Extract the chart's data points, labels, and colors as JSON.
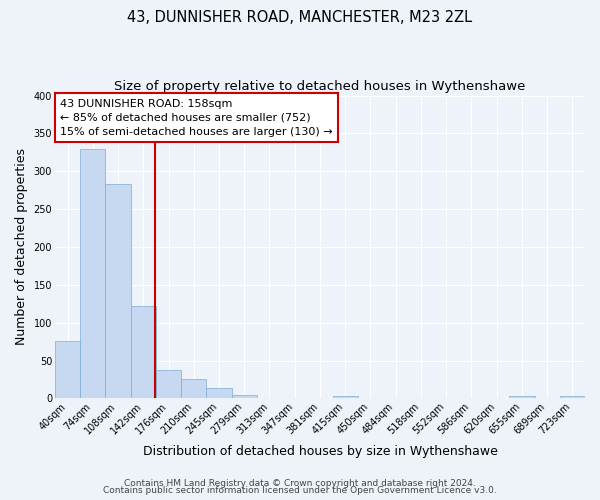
{
  "title_line1": "43, DUNNISHER ROAD, MANCHESTER, M23 2ZL",
  "title_line2": "Size of property relative to detached houses in Wythenshawe",
  "xlabel": "Distribution of detached houses by size in Wythenshawe",
  "ylabel": "Number of detached properties",
  "bar_labels": [
    "40sqm",
    "74sqm",
    "108sqm",
    "142sqm",
    "176sqm",
    "210sqm",
    "245sqm",
    "279sqm",
    "313sqm",
    "347sqm",
    "381sqm",
    "415sqm",
    "450sqm",
    "484sqm",
    "518sqm",
    "552sqm",
    "586sqm",
    "620sqm",
    "655sqm",
    "689sqm",
    "723sqm"
  ],
  "bar_values": [
    76,
    330,
    283,
    122,
    38,
    25,
    14,
    4,
    1,
    0,
    0,
    3,
    0,
    0,
    0,
    0,
    0,
    0,
    3,
    0,
    3
  ],
  "bar_color": "#c6d9f0",
  "bar_edge_color": "#7bafd4",
  "bar_width": 1.0,
  "vline_x": 3.47,
  "vline_color": "#cc0000",
  "ylim": [
    0,
    400
  ],
  "yticks": [
    0,
    50,
    100,
    150,
    200,
    250,
    300,
    350,
    400
  ],
  "annotation_title": "43 DUNNISHER ROAD: 158sqm",
  "annotation_line2": "← 85% of detached houses are smaller (752)",
  "annotation_line3": "15% of semi-detached houses are larger (130) →",
  "annotation_box_facecolor": "#ffffff",
  "annotation_box_edgecolor": "#cc0000",
  "footer_line1": "Contains HM Land Registry data © Crown copyright and database right 2024.",
  "footer_line2": "Contains public sector information licensed under the Open Government Licence v3.0.",
  "bg_color": "#eef2f9",
  "plot_bg_color": "#eef2f9",
  "grid_color": "#ffffff",
  "title_fontsize": 10.5,
  "subtitle_fontsize": 9.5,
  "axis_label_fontsize": 9,
  "tick_fontsize": 7,
  "annotation_fontsize": 8,
  "footer_fontsize": 6.5
}
